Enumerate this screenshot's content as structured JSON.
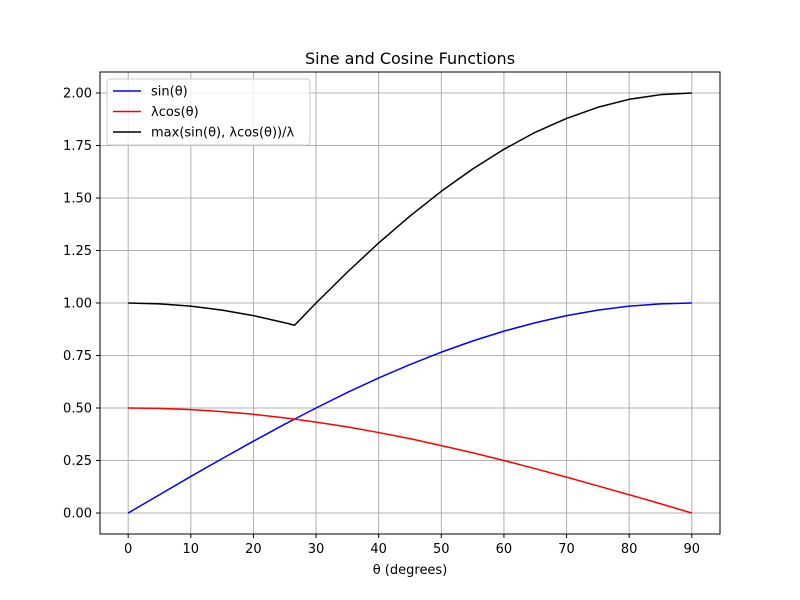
{
  "chart_data": {
    "type": "line",
    "title": "Sine and Cosine Functions",
    "xlabel": "θ (degrees)",
    "ylabel": "",
    "xlim": [
      -4.5,
      94.5
    ],
    "ylim": [
      -0.1,
      2.1
    ],
    "xticks": [
      0,
      10,
      20,
      30,
      40,
      50,
      60,
      70,
      80,
      90
    ],
    "yticks": [
      0.0,
      0.25,
      0.5,
      0.75,
      1.0,
      1.25,
      1.5,
      1.75,
      2.0
    ],
    "ytick_labels": [
      "0.00",
      "0.25",
      "0.50",
      "0.75",
      "1.00",
      "1.25",
      "1.50",
      "1.75",
      "2.00"
    ],
    "grid": true,
    "legend_position": "top-left",
    "x": [
      0,
      5,
      10,
      15,
      20,
      25,
      26.57,
      30,
      35,
      40,
      45,
      50,
      55,
      60,
      65,
      70,
      75,
      80,
      85,
      90
    ],
    "series": [
      {
        "name": "sin(θ)",
        "color": "#0000ff",
        "values": [
          0.0,
          0.087,
          0.174,
          0.259,
          0.342,
          0.423,
          0.447,
          0.5,
          0.574,
          0.643,
          0.707,
          0.766,
          0.819,
          0.866,
          0.906,
          0.94,
          0.966,
          0.985,
          0.996,
          1.0
        ]
      },
      {
        "name": "λcos(θ)",
        "color": "#ff0000",
        "values": [
          0.5,
          0.498,
          0.492,
          0.483,
          0.47,
          0.453,
          0.447,
          0.433,
          0.41,
          0.383,
          0.354,
          0.321,
          0.287,
          0.25,
          0.211,
          0.171,
          0.129,
          0.087,
          0.044,
          0.0
        ]
      },
      {
        "name": "max(sin(θ), λcos(θ))/λ",
        "color": "#000000",
        "values": [
          1.0,
          0.996,
          0.985,
          0.966,
          0.94,
          0.906,
          0.894,
          1.0,
          1.147,
          1.286,
          1.414,
          1.532,
          1.638,
          1.732,
          1.813,
          1.879,
          1.932,
          1.97,
          1.992,
          2.0
        ]
      }
    ]
  }
}
